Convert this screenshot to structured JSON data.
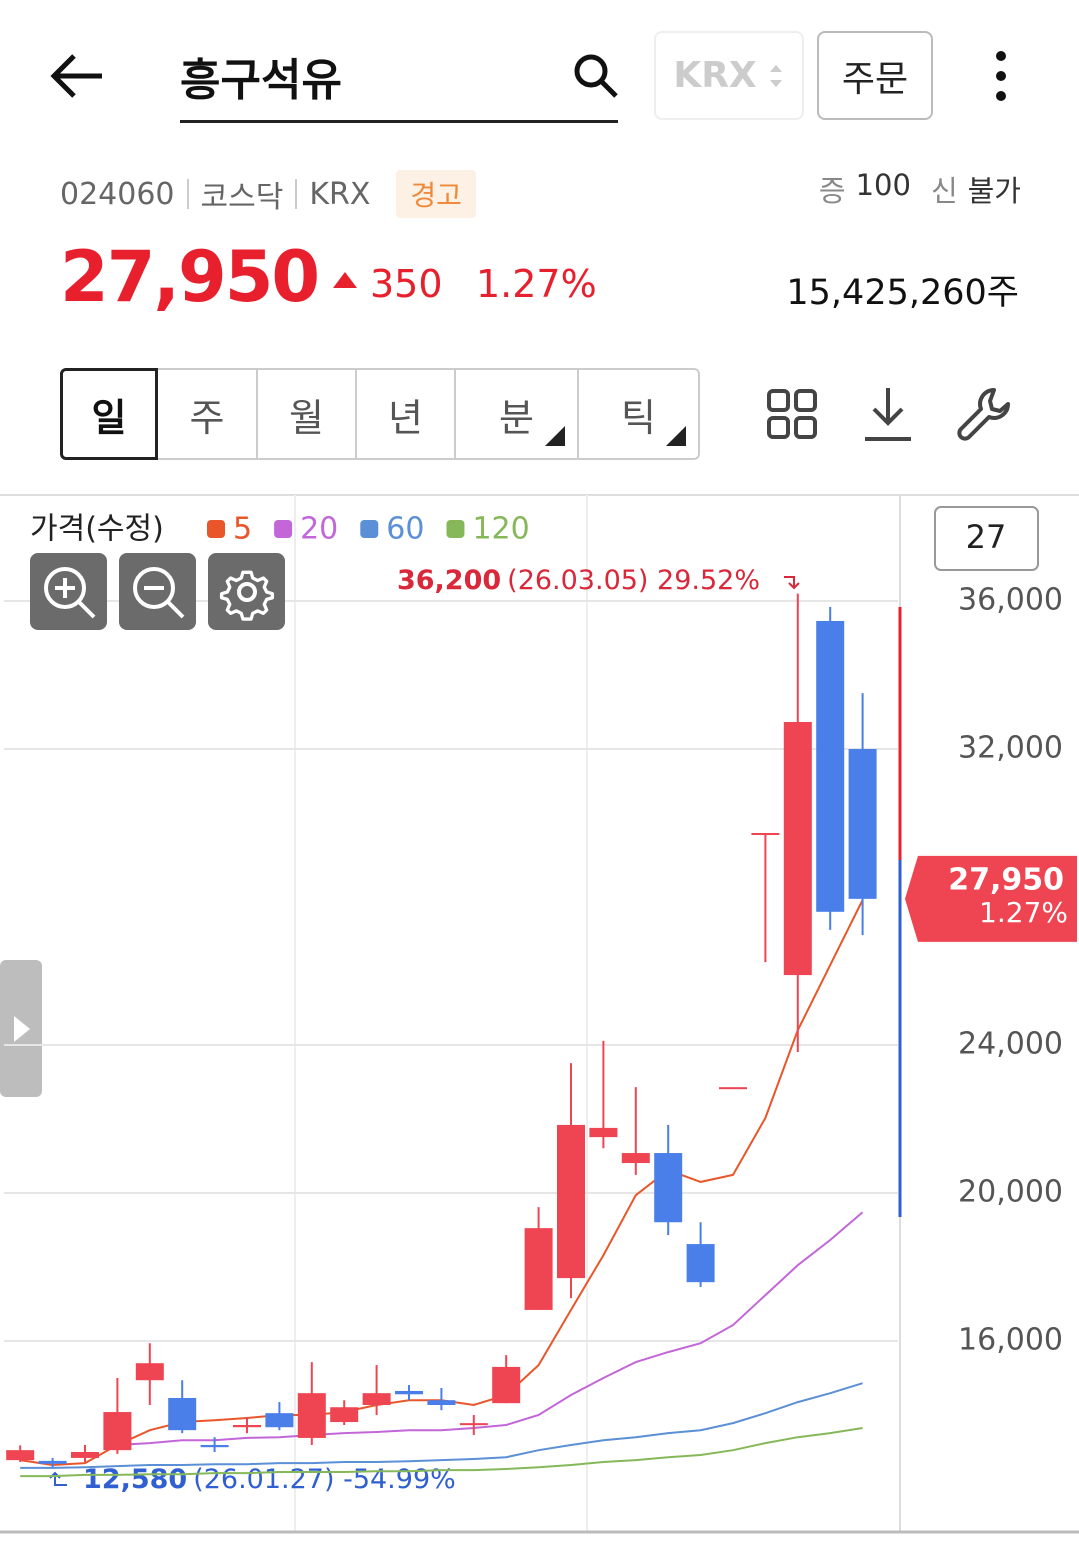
{
  "header": {
    "title": "흥구석유",
    "exchange_button": "KRX",
    "order_button": "주문"
  },
  "stock": {
    "code": "024060",
    "market": "코스닥",
    "exchange": "KRX",
    "badge": "경고",
    "margin_label": "증",
    "margin_value": "100",
    "credit_label": "신",
    "credit_value": "불가",
    "price": "27,950",
    "change": "350",
    "change_rate": "1.27%",
    "volume": "15,425,260주"
  },
  "tabs": [
    "일",
    "주",
    "월",
    "년",
    "분",
    "틱"
  ],
  "chart_data": {
    "type": "candlestick",
    "legend_title": "가격(수정)",
    "count": "27",
    "up_color": "#ef4452",
    "down_color": "#4a7ee8",
    "candles": {
      "open": [
        12780,
        12760,
        12840,
        13050,
        14940,
        14460,
        13190,
        13670,
        14050,
        13380,
        13810,
        14270,
        14650,
        14400,
        13730,
        14320,
        16840,
        17700,
        21510,
        20810,
        21080,
        18620,
        22860,
        29730,
        25890,
        35460,
        32000
      ],
      "high": [
        13180,
        12840,
        13190,
        15000,
        15940,
        14940,
        13400,
        13940,
        14350,
        15430,
        14400,
        15350,
        14810,
        14730,
        14000,
        15620,
        19620,
        23510,
        24110,
        22860,
        21840,
        19210,
        22860,
        29730,
        36200,
        35840,
        33510
      ],
      "low": [
        12730,
        12580,
        12730,
        12950,
        14270,
        13510,
        13000,
        13510,
        13590,
        13190,
        13730,
        14000,
        14400,
        14130,
        13460,
        14320,
        16840,
        17160,
        21210,
        20490,
        18860,
        17460,
        22860,
        26240,
        23810,
        27110,
        26970
      ],
      "close": [
        13050,
        12680,
        13000,
        14080,
        15400,
        13590,
        13130,
        13730,
        13670,
        14590,
        14210,
        14590,
        14560,
        14270,
        13780,
        15300,
        19050,
        21840,
        21760,
        21080,
        19210,
        17590,
        22860,
        29730,
        32730,
        27600,
        27950
      ]
    },
    "series": [
      {
        "name": "5",
        "color": "#e8562a",
        "values": [
          12780,
          12650,
          12700,
          13190,
          13590,
          13810,
          13860,
          13920,
          14000,
          14000,
          14080,
          14270,
          14400,
          14400,
          14270,
          14540,
          15350,
          16840,
          18320,
          19940,
          20620,
          20300,
          20490,
          22030,
          24400,
          26160,
          27920
        ]
      },
      {
        "name": "20",
        "color": "#c266d8",
        "values": [
          null,
          null,
          null,
          13190,
          13240,
          13320,
          13320,
          13380,
          13400,
          13460,
          13510,
          13540,
          13590,
          13590,
          13650,
          13730,
          14000,
          14540,
          15000,
          15430,
          15700,
          15940,
          16430,
          17240,
          18050,
          18730,
          19480
        ]
      },
      {
        "name": "60",
        "color": "#5b8fd6",
        "values": [
          12570,
          12570,
          12590,
          12620,
          12650,
          12650,
          12670,
          12670,
          12700,
          12700,
          12730,
          12730,
          12750,
          12780,
          12810,
          12860,
          13050,
          13190,
          13320,
          13400,
          13510,
          13590,
          13780,
          14050,
          14350,
          14590,
          14860
        ]
      },
      {
        "name": "120",
        "color": "#86b85a",
        "values": [
          12350,
          12350,
          12380,
          12380,
          12400,
          12400,
          12430,
          12430,
          12460,
          12460,
          12460,
          12480,
          12480,
          12510,
          12510,
          12540,
          12590,
          12650,
          12730,
          12780,
          12860,
          12920,
          13050,
          13240,
          13400,
          13510,
          13650
        ]
      }
    ],
    "ylim": [
      10892,
      38811
    ],
    "yticks": [
      {
        "value": 16000,
        "label": "16,000"
      },
      {
        "value": 20000,
        "label": "20,000"
      },
      {
        "value": 24000,
        "label": "24,000"
      },
      {
        "value": 32000,
        "label": "32,000"
      },
      {
        "value": 36000,
        "label": "36,000"
      }
    ],
    "grid": true,
    "annotations": {
      "high": {
        "price": "36,200",
        "detail": "(26.03.05) 29.52%"
      },
      "low": {
        "price": "12,580",
        "detail": "(26.01.27) -54.99%"
      }
    },
    "current": {
      "value": 27950,
      "label": "27,950",
      "change": "1.27%"
    }
  }
}
